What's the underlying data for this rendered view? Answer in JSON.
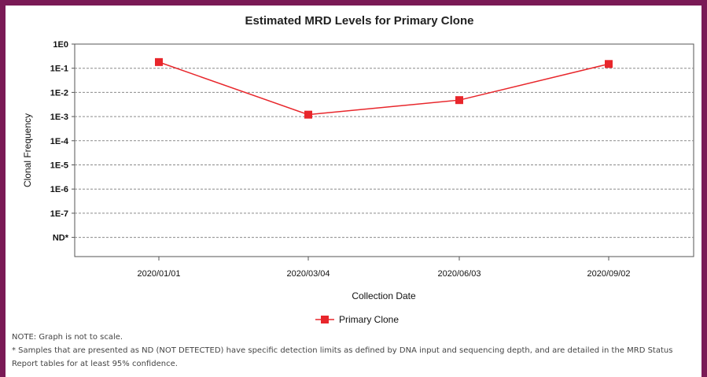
{
  "colors": {
    "frame": "#7a1a56",
    "series": "#e8262b",
    "grid": "#8a8a8a"
  },
  "chart_data": {
    "type": "line",
    "title": "Estimated MRD Levels for Primary Clone",
    "xlabel": "Collection Date",
    "ylabel": "Clonal Frequency",
    "y_scale": "log",
    "y_ticks": [
      {
        "label": "1E0"
      },
      {
        "label": "1E-1"
      },
      {
        "label": "1E-2"
      },
      {
        "label": "1E-3"
      },
      {
        "label": "1E-4"
      },
      {
        "label": "1E-5"
      },
      {
        "label": "1E-6"
      },
      {
        "label": "1E-7"
      },
      {
        "label": "ND*"
      }
    ],
    "y_tick_values": [
      1,
      0.1,
      0.01,
      0.001,
      0.0001,
      1e-05,
      1e-06,
      1e-07,
      null
    ],
    "x": [
      "2020/01/01",
      "2020/03/04",
      "2020/06/03",
      "2020/09/02"
    ],
    "grid": "horizontal dashed",
    "legend_position": "bottom-center",
    "series": [
      {
        "name": "Primary Clone",
        "marker": "square",
        "values": [
          0.18,
          0.0012,
          0.0048,
          0.15
        ]
      }
    ]
  },
  "notes": {
    "note1": "NOTE: Graph is not to scale.",
    "note2": "* Samples that are presented as ND (NOT DETECTED) have specific detection limits as defined by DNA input and sequencing depth, and are detailed in the MRD Status Report tables for at least 95% confidence."
  }
}
